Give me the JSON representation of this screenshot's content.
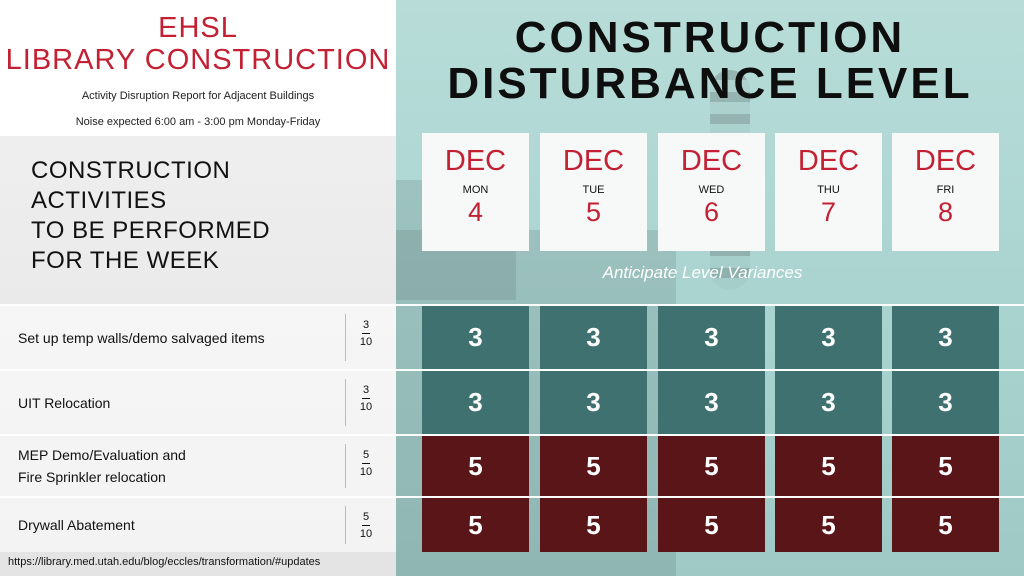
{
  "header": {
    "title_line1": "EHSL",
    "title_line2": "LIBRARY CONSTRUCTION",
    "subtitle1": "Activity Disruption Report for Adjacent Buildings",
    "subtitle2": "Noise expected 6:00 am - 3:00 pm Monday-Friday"
  },
  "section_heading": [
    "CONSTRUCTION ACTIVITIES",
    "TO BE PERFORMED",
    "FOR THE WEEK"
  ],
  "main_title": [
    "CONSTRUCTION",
    "DISTURBANCE LEVEL"
  ],
  "days": [
    {
      "month": "DEC",
      "dow": "MON",
      "day": "4"
    },
    {
      "month": "DEC",
      "dow": "TUE",
      "day": "5"
    },
    {
      "month": "DEC",
      "dow": "WED",
      "day": "6"
    },
    {
      "month": "DEC",
      "dow": "THU",
      "day": "7"
    },
    {
      "month": "DEC",
      "dow": "FRI",
      "day": "8"
    }
  ],
  "variance_note": "Anticipate Level Variances",
  "activities": [
    {
      "label": [
        "Set up temp walls/demo salvaged items"
      ],
      "num": "3",
      "den": "10",
      "levels": [
        "3",
        "3",
        "3",
        "3",
        "3"
      ],
      "color": "#3f7171"
    },
    {
      "label": [
        "UIT Relocation"
      ],
      "num": "3",
      "den": "10",
      "levels": [
        "3",
        "3",
        "3",
        "3",
        "3"
      ],
      "color": "#3f7171"
    },
    {
      "label": [
        "MEP Demo/Evaluation and",
        "Fire Sprinkler relocation"
      ],
      "num": "5",
      "den": "10",
      "levels": [
        "5",
        "5",
        "5",
        "5",
        "5"
      ],
      "color": "#5a1518"
    },
    {
      "label": [
        "Drywall Abatement"
      ],
      "num": "5",
      "den": "10",
      "levels": [
        "5",
        "5",
        "5",
        "5",
        "5"
      ],
      "color": "#5a1518"
    }
  ],
  "footer_url": "https://library.med.utah.edu/blog/eccles/transformation/#updates",
  "colors": {
    "accent_red": "#c32033",
    "level3": "#3f7171",
    "level5": "#5a1518",
    "teal_bg": "#b8ddd9"
  }
}
